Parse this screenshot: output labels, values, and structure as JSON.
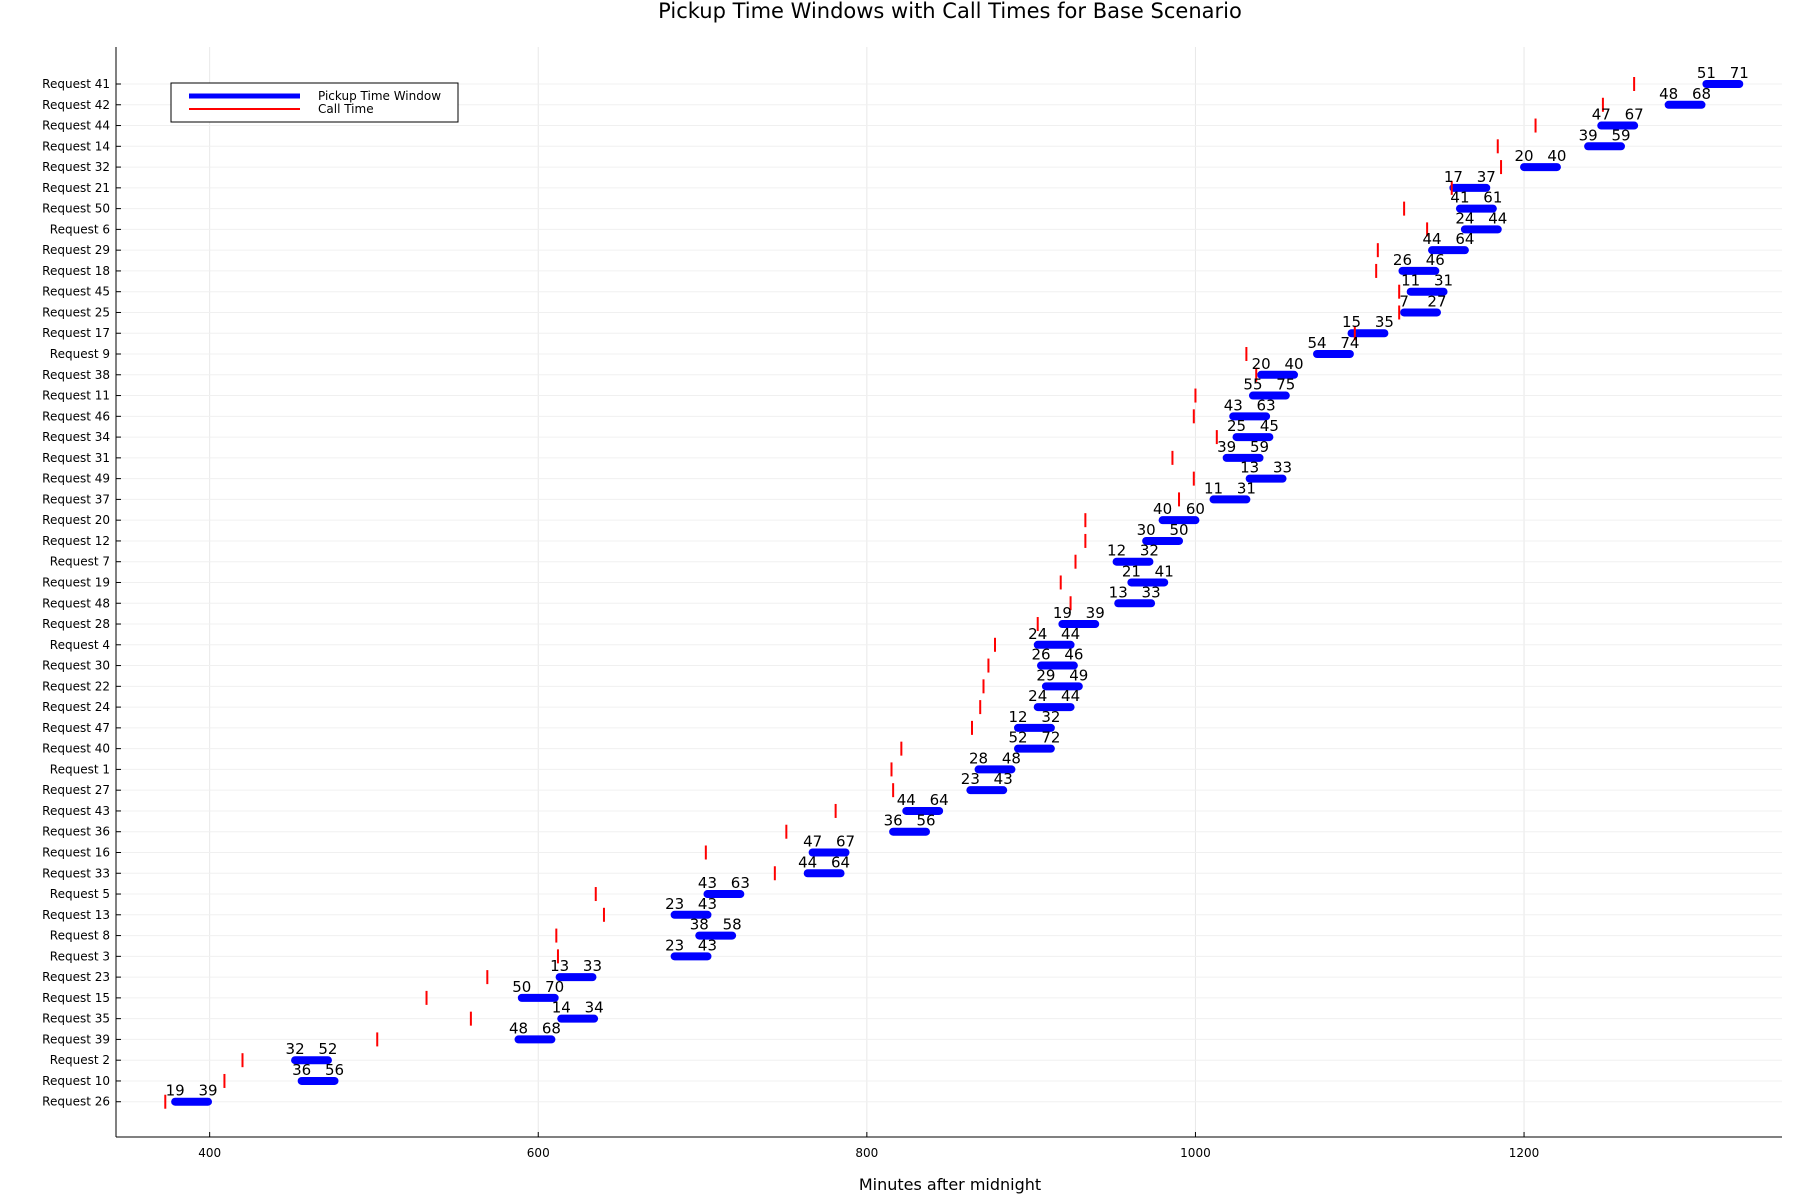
{
  "chart_data": {
    "type": "bar",
    "title": "Pickup Time Windows with Call Times for Base Scenario",
    "xlabel": "Minutes after midnight",
    "ylabel": "",
    "xlim": [
      343,
      1357
    ],
    "xticks": [
      400,
      600,
      800,
      1000,
      1200
    ],
    "grid": true,
    "legend_position": "top-left",
    "legend": [
      {
        "name": "Pickup Time Window",
        "color": "#0000ff"
      },
      {
        "name": "Call Time",
        "color": "#ff0000"
      }
    ],
    "colors": {
      "window": "#0000ff",
      "call": "#ff0000"
    },
    "series": [
      {
        "request": "Request 41",
        "start": 1311,
        "end": 1331,
        "call": 1267,
        "label_start": "51",
        "label_end": "71"
      },
      {
        "request": "Request 42",
        "start": 1288,
        "end": 1308,
        "call": 1248,
        "label_start": "48",
        "label_end": "68"
      },
      {
        "request": "Request 44",
        "start": 1247,
        "end": 1267,
        "call": 1207,
        "label_start": "47",
        "label_end": "67"
      },
      {
        "request": "Request 14",
        "start": 1239,
        "end": 1259,
        "call": 1184,
        "label_start": "39",
        "label_end": "59"
      },
      {
        "request": "Request 32",
        "start": 1200,
        "end": 1220,
        "call": 1186,
        "label_start": "20",
        "label_end": "40"
      },
      {
        "request": "Request 21",
        "start": 1157,
        "end": 1177,
        "call": 1156,
        "label_start": "17",
        "label_end": "37"
      },
      {
        "request": "Request 50",
        "start": 1161,
        "end": 1181,
        "call": 1127,
        "label_start": "41",
        "label_end": "61"
      },
      {
        "request": "Request 6",
        "start": 1164,
        "end": 1184,
        "call": 1141,
        "label_start": "24",
        "label_end": "44"
      },
      {
        "request": "Request 29",
        "start": 1144,
        "end": 1164,
        "call": 1111,
        "label_start": "44",
        "label_end": "64"
      },
      {
        "request": "Request 18",
        "start": 1126,
        "end": 1146,
        "call": 1110,
        "label_start": "26",
        "label_end": "46"
      },
      {
        "request": "Request 45",
        "start": 1131,
        "end": 1151,
        "call": 1124,
        "label_start": "11",
        "label_end": "31"
      },
      {
        "request": "Request 25",
        "start": 1127,
        "end": 1147,
        "call": 1124,
        "label_start": "7",
        "label_end": "27"
      },
      {
        "request": "Request 17",
        "start": 1095,
        "end": 1115,
        "call": 1097,
        "label_start": "15",
        "label_end": "35"
      },
      {
        "request": "Request 9",
        "start": 1074,
        "end": 1094,
        "call": 1031,
        "label_start": "54",
        "label_end": "74"
      },
      {
        "request": "Request 38",
        "start": 1040,
        "end": 1060,
        "call": 1037,
        "label_start": "20",
        "label_end": "40"
      },
      {
        "request": "Request 11",
        "start": 1035,
        "end": 1055,
        "call": 1000,
        "label_start": "55",
        "label_end": "75"
      },
      {
        "request": "Request 46",
        "start": 1023,
        "end": 1043,
        "call": 999,
        "label_start": "43",
        "label_end": "63"
      },
      {
        "request": "Request 34",
        "start": 1025,
        "end": 1045,
        "call": 1013,
        "label_start": "25",
        "label_end": "45"
      },
      {
        "request": "Request 31",
        "start": 1019,
        "end": 1039,
        "call": 986,
        "label_start": "39",
        "label_end": "59"
      },
      {
        "request": "Request 49",
        "start": 1033,
        "end": 1053,
        "call": 999,
        "label_start": "13",
        "label_end": "33"
      },
      {
        "request": "Request 37",
        "start": 1011,
        "end": 1031,
        "call": 990,
        "label_start": "11",
        "label_end": "31"
      },
      {
        "request": "Request 20",
        "start": 980,
        "end": 1000,
        "call": 933,
        "label_start": "40",
        "label_end": "60"
      },
      {
        "request": "Request 12",
        "start": 970,
        "end": 990,
        "call": 933,
        "label_start": "30",
        "label_end": "50"
      },
      {
        "request": "Request 7",
        "start": 952,
        "end": 972,
        "call": 927,
        "label_start": "12",
        "label_end": "32"
      },
      {
        "request": "Request 19",
        "start": 961,
        "end": 981,
        "call": 918,
        "label_start": "21",
        "label_end": "41"
      },
      {
        "request": "Request 48",
        "start": 953,
        "end": 973,
        "call": 924,
        "label_start": "13",
        "label_end": "33"
      },
      {
        "request": "Request 28",
        "start": 919,
        "end": 939,
        "call": 904,
        "label_start": "19",
        "label_end": "39"
      },
      {
        "request": "Request 4",
        "start": 904,
        "end": 924,
        "call": 878,
        "label_start": "24",
        "label_end": "44"
      },
      {
        "request": "Request 30",
        "start": 906,
        "end": 926,
        "call": 874,
        "label_start": "26",
        "label_end": "46"
      },
      {
        "request": "Request 22",
        "start": 909,
        "end": 929,
        "call": 871,
        "label_start": "29",
        "label_end": "49"
      },
      {
        "request": "Request 24",
        "start": 904,
        "end": 924,
        "call": 869,
        "label_start": "24",
        "label_end": "44"
      },
      {
        "request": "Request 47",
        "start": 892,
        "end": 912,
        "call": 864,
        "label_start": "12",
        "label_end": "32"
      },
      {
        "request": "Request 40",
        "start": 892,
        "end": 912,
        "call": 821,
        "label_start": "52",
        "label_end": "72"
      },
      {
        "request": "Request 1",
        "start": 868,
        "end": 888,
        "call": 815,
        "label_start": "28",
        "label_end": "48"
      },
      {
        "request": "Request 27",
        "start": 863,
        "end": 883,
        "call": 816,
        "label_start": "23",
        "label_end": "43"
      },
      {
        "request": "Request 43",
        "start": 824,
        "end": 844,
        "call": 781,
        "label_start": "44",
        "label_end": "64"
      },
      {
        "request": "Request 36",
        "start": 816,
        "end": 836,
        "call": 751,
        "label_start": "36",
        "label_end": "56"
      },
      {
        "request": "Request 16",
        "start": 767,
        "end": 787,
        "call": 702,
        "label_start": "47",
        "label_end": "67"
      },
      {
        "request": "Request 33",
        "start": 764,
        "end": 784,
        "call": 744,
        "label_start": "44",
        "label_end": "64"
      },
      {
        "request": "Request 5",
        "start": 703,
        "end": 723,
        "call": 635,
        "label_start": "43",
        "label_end": "63"
      },
      {
        "request": "Request 13",
        "start": 683,
        "end": 703,
        "call": 640,
        "label_start": "23",
        "label_end": "43"
      },
      {
        "request": "Request 8",
        "start": 698,
        "end": 718,
        "call": 611,
        "label_start": "38",
        "label_end": "58"
      },
      {
        "request": "Request 3",
        "start": 683,
        "end": 703,
        "call": 612,
        "label_start": "23",
        "label_end": "43"
      },
      {
        "request": "Request 23",
        "start": 613,
        "end": 633,
        "call": 569,
        "label_start": "13",
        "label_end": "33"
      },
      {
        "request": "Request 15",
        "start": 590,
        "end": 610,
        "call": 532,
        "label_start": "50",
        "label_end": "70"
      },
      {
        "request": "Request 35",
        "start": 614,
        "end": 634,
        "call": 559,
        "label_start": "14",
        "label_end": "34"
      },
      {
        "request": "Request 39",
        "start": 588,
        "end": 608,
        "call": 502,
        "label_start": "48",
        "label_end": "68"
      },
      {
        "request": "Request 2",
        "start": 452,
        "end": 472,
        "call": 420,
        "label_start": "32",
        "label_end": "52"
      },
      {
        "request": "Request 10",
        "start": 456,
        "end": 476,
        "call": 409,
        "label_start": "36",
        "label_end": "56"
      },
      {
        "request": "Request 26",
        "start": 379,
        "end": 399,
        "call": 373,
        "label_start": "19",
        "label_end": "39"
      }
    ]
  }
}
